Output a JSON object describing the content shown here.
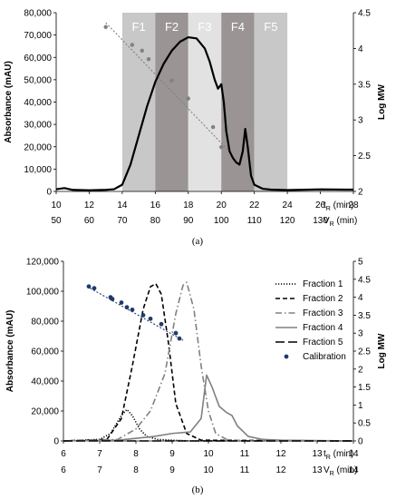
{
  "chart_data": [
    {
      "panel_label": "(a)",
      "type": "line",
      "bands": [
        {
          "label": "F1",
          "x0": 14,
          "x1": 16,
          "color": "#c8c8c8"
        },
        {
          "label": "F2",
          "x0": 16,
          "x1": 18,
          "color": "#9a9494"
        },
        {
          "label": "F3",
          "x0": 18,
          "x1": 20,
          "color": "#e2e2e2"
        },
        {
          "label": "F4",
          "x0": 20,
          "x1": 22,
          "color": "#9a9494"
        },
        {
          "label": "F5",
          "x0": 22,
          "x1": 24,
          "color": "#c8c8c8"
        }
      ],
      "xlim": [
        10,
        28
      ],
      "ylim_left": [
        0,
        80000
      ],
      "ylim_right": [
        2,
        4.5
      ],
      "xticks": [
        "10",
        "12",
        "14",
        "16",
        "18",
        "20",
        "22",
        "24",
        "26",
        "28"
      ],
      "x2ticks": [
        "50",
        "60",
        "70",
        "80",
        "90",
        "100",
        "110",
        "120",
        "130"
      ],
      "yticks_left": [
        "0",
        "10,000",
        "20,000",
        "30,000",
        "40,000",
        "50,000",
        "60,000",
        "70,000",
        "80,000"
      ],
      "yticks_right": [
        "2",
        "2.5",
        "3",
        "3.5",
        "4",
        "4.5"
      ],
      "ylabel_left": "Absorbance (mAU)",
      "ylabel_right": "Log MW",
      "xlabel_top": "t",
      "xlabel_top_sub": "R",
      "xlabel_top_unit": "(min)",
      "xlabel_bottom": "V",
      "xlabel_bottom_sub": "R",
      "xlabel_bottom_unit": "(min)",
      "series": [
        {
          "axis": "left",
          "style": "solid",
          "color": "#000000",
          "x": [
            10,
            10.5,
            11,
            12,
            13,
            13.5,
            14,
            14.5,
            15,
            15.5,
            16,
            16.5,
            17,
            17.5,
            18,
            18.5,
            19,
            19.3,
            19.6,
            19.8,
            20,
            20.15,
            20.3,
            20.5,
            20.7,
            20.9,
            21.1,
            21.3,
            21.45,
            21.6,
            21.8,
            22,
            22.5,
            23,
            24,
            26,
            28
          ],
          "y": [
            1000,
            1500,
            700,
            500,
            700,
            1000,
            3000,
            12000,
            25000,
            38000,
            49000,
            57000,
            63000,
            67000,
            69000,
            68500,
            64000,
            58000,
            50000,
            46000,
            48000,
            40000,
            27000,
            18000,
            15000,
            13000,
            12000,
            18000,
            28000,
            20000,
            7000,
            3000,
            1200,
            800,
            600,
            900,
            800
          ]
        },
        {
          "axis": "right",
          "style": "dotted-with-markers",
          "color": "#808080",
          "x": [
            13,
            14.6,
            15.2,
            15.6,
            17,
            18,
            19.5,
            20
          ],
          "y": [
            4.3,
            4.05,
            3.97,
            3.85,
            3.55,
            3.3,
            2.9,
            2.62
          ],
          "fit_line": {
            "x": [
              13,
              20.4
            ],
            "y": [
              4.36,
              2.58
            ]
          }
        }
      ]
    },
    {
      "panel_label": "(b)",
      "type": "line",
      "xlim": [
        6,
        14
      ],
      "ylim_left": [
        0,
        120000
      ],
      "ylim_right": [
        0,
        5
      ],
      "xticks": [
        "6",
        "7",
        "8",
        "9",
        "10",
        "11",
        "12",
        "13",
        "14"
      ],
      "x2ticks": [
        "6",
        "7",
        "8",
        "9",
        "10",
        "11",
        "12",
        "13",
        "14"
      ],
      "yticks_left": [
        "0",
        "20,000",
        "40,000",
        "60,000",
        "80,000",
        "100,000",
        "120,000"
      ],
      "yticks_right": [
        "0",
        "0.5",
        "1",
        "1.5",
        "2",
        "2.5",
        "3",
        "3.5",
        "4",
        "4.5",
        "5"
      ],
      "ylabel_left": "Absorbance (mAU)",
      "ylabel_right": "Log MW",
      "xlabel_top": "t",
      "xlabel_top_sub": "R",
      "xlabel_top_unit": "(min)",
      "xlabel_bottom": "V",
      "xlabel_bottom_sub": "R",
      "xlabel_bottom_unit": "(min)",
      "series": [
        {
          "name": "Fraction 1",
          "axis": "left",
          "style": "dotted",
          "color": "#000000",
          "x": [
            6,
            7,
            7.3,
            7.6,
            7.75,
            7.9,
            8.1,
            8.3,
            8.6,
            9,
            9.5,
            14
          ],
          "y": [
            0,
            1000,
            5000,
            17000,
            21000,
            17000,
            8000,
            3000,
            1000,
            500,
            0,
            0
          ]
        },
        {
          "name": "Fraction 2",
          "axis": "left",
          "style": "dashed",
          "color": "#000000",
          "x": [
            6,
            7.2,
            7.6,
            7.9,
            8.2,
            8.4,
            8.55,
            8.7,
            8.9,
            9.1,
            9.4,
            9.8,
            14
          ],
          "y": [
            0,
            1000,
            15000,
            50000,
            88000,
            103000,
            105000,
            98000,
            65000,
            25000,
            5000,
            500,
            0
          ]
        },
        {
          "name": "Fraction 3",
          "axis": "left",
          "style": "dash-dot",
          "color": "#808080",
          "x": [
            6,
            7.5,
            8,
            8.4,
            8.8,
            9.1,
            9.3,
            9.4,
            9.6,
            9.8,
            10,
            10.2,
            10.5,
            11,
            14
          ],
          "y": [
            0,
            1000,
            8000,
            20000,
            45000,
            85000,
            104000,
            106000,
            88000,
            50000,
            20000,
            5000,
            1000,
            0,
            0
          ]
        },
        {
          "name": "Fraction 4",
          "axis": "left",
          "style": "solid",
          "color": "#808080",
          "x": [
            6,
            7.5,
            8.5,
            9,
            9.5,
            9.8,
            9.95,
            10.1,
            10.3,
            10.5,
            10.65,
            10.8,
            11.1,
            11.5,
            12,
            14
          ],
          "y": [
            0,
            500,
            3000,
            5000,
            6000,
            15000,
            44000,
            36000,
            23000,
            19000,
            17000,
            10000,
            3000,
            1000,
            500,
            0
          ]
        },
        {
          "name": "Fraction 5",
          "axis": "left",
          "style": "long-dash",
          "color": "#000000",
          "x": [
            6,
            14
          ],
          "y": [
            0,
            0
          ]
        },
        {
          "name": "Calibration",
          "axis": "right",
          "style": "markers-with-dotted-fit",
          "color": "#1f3a6b",
          "x": [
            6.7,
            6.85,
            7.3,
            7.35,
            7.6,
            7.75,
            7.9,
            8.2,
            8.4,
            8.7,
            9.1,
            9.2
          ],
          "y": [
            4.3,
            4.25,
            4.0,
            3.95,
            3.85,
            3.72,
            3.65,
            3.5,
            3.4,
            3.25,
            3.0,
            2.85
          ],
          "fit_line": {
            "x": [
              6.65,
              9.3
            ],
            "y": [
              4.3,
              2.8
            ]
          }
        }
      ]
    }
  ]
}
